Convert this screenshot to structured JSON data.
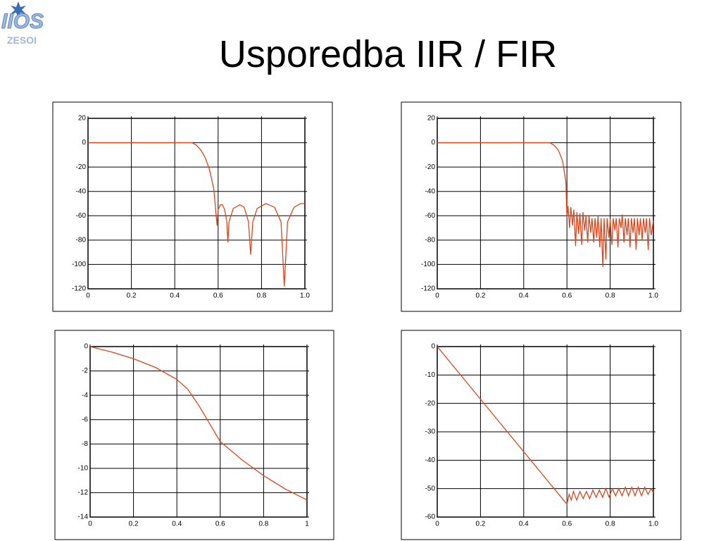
{
  "title": "Usporedba IIR / FIR",
  "logo": {
    "mark": "IIOS",
    "name": "ZESOI"
  },
  "chart_data": [
    {
      "type": "line",
      "color": "#e0441b",
      "grid": true,
      "x": [
        0,
        0.1,
        0.2,
        0.3,
        0.4,
        0.48,
        0.5,
        0.52,
        0.54,
        0.56,
        0.58,
        0.595,
        0.6,
        0.61,
        0.62,
        0.63,
        0.64,
        0.645,
        0.65,
        0.67,
        0.7,
        0.72,
        0.74,
        0.75,
        0.76,
        0.78,
        0.82,
        0.86,
        0.89,
        0.905,
        0.92,
        0.95,
        0.98,
        1.0
      ],
      "values": [
        0,
        0,
        0,
        0,
        0,
        0,
        -2,
        -6,
        -12,
        -22,
        -38,
        -68,
        -55,
        -51,
        -51,
        -55,
        -65,
        -82,
        -65,
        -54,
        -51,
        -53,
        -65,
        -92,
        -65,
        -54,
        -50,
        -53,
        -65,
        -118,
        -65,
        -53,
        -50,
        -50
      ],
      "xlim": [
        0,
        1
      ],
      "xticks": [
        0,
        0.2,
        0.4,
        0.6,
        0.8,
        {
          "value": 1,
          "label": "1.0"
        }
      ],
      "ylim": [
        -120,
        20
      ],
      "yticks": [
        -120,
        -100,
        -80,
        -60,
        -40,
        -20,
        0,
        20
      ]
    },
    {
      "type": "line",
      "color": "#e0441b",
      "grid": true,
      "x": [
        0,
        0.1,
        0.2,
        0.3,
        0.4,
        0.5,
        0.52,
        0.54,
        0.56,
        0.58,
        0.595,
        0.6,
        0.605,
        0.612,
        0.618,
        0.626,
        0.632,
        0.64,
        0.646,
        0.654,
        0.66,
        0.668,
        0.674,
        0.682,
        0.688,
        0.696,
        0.702,
        0.71,
        0.716,
        0.724,
        0.73,
        0.738,
        0.744,
        0.752,
        0.758,
        0.766,
        0.772,
        0.78,
        0.786,
        0.794,
        0.8,
        0.808,
        0.814,
        0.822,
        0.828,
        0.836,
        0.842,
        0.85,
        0.856,
        0.864,
        0.87,
        0.878,
        0.884,
        0.892,
        0.898,
        0.906,
        0.912,
        0.92,
        0.926,
        0.934,
        0.94,
        0.948,
        0.954,
        0.962,
        0.968,
        0.976,
        0.982,
        0.99,
        1.0
      ],
      "values": [
        0,
        0,
        0,
        0,
        0,
        0,
        0,
        -2,
        -6,
        -15,
        -32,
        -62,
        -52,
        -70,
        -53,
        -68,
        -55,
        -85,
        -57,
        -75,
        -58,
        -84,
        -57,
        -72,
        -60,
        -82,
        -60,
        -74,
        -62,
        -82,
        -62,
        -78,
        -60,
        -86,
        -62,
        -102,
        -62,
        -96,
        -62,
        -78,
        -63,
        -84,
        -62,
        -72,
        -62,
        -86,
        -62,
        -70,
        -59,
        -82,
        -62,
        -76,
        -62,
        -86,
        -62,
        -74,
        -62,
        -88,
        -62,
        -76,
        -62,
        -80,
        -62,
        -74,
        -62,
        -88,
        -62,
        -76,
        -64
      ],
      "xlim": [
        0,
        1
      ],
      "xticks": [
        0,
        0.2,
        0.4,
        0.6,
        0.8,
        {
          "value": 1,
          "label": "1.0"
        }
      ],
      "ylim": [
        -120,
        20
      ],
      "yticks": [
        -120,
        -100,
        -80,
        -60,
        -40,
        -20,
        0,
        20
      ]
    },
    {
      "type": "line",
      "color": "#e0441b",
      "grid": true,
      "x": [
        0,
        0.1,
        0.2,
        0.3,
        0.4,
        0.45,
        0.5,
        0.55,
        0.6,
        0.7,
        0.8,
        0.9,
        1.0
      ],
      "values": [
        0,
        -0.45,
        -1.0,
        -1.7,
        -2.7,
        -3.5,
        -4.8,
        -6.3,
        -7.8,
        -9.3,
        -10.6,
        -11.7,
        -12.6
      ],
      "xlim": [
        0,
        1
      ],
      "xticks": [
        0,
        0.2,
        0.4,
        0.6,
        0.8,
        1
      ],
      "ylim": [
        -14,
        0
      ],
      "yticks": [
        -14,
        -12,
        -10,
        -8,
        -6,
        -4,
        -2,
        0
      ]
    },
    {
      "type": "line",
      "color": "#e0441b",
      "grid": true,
      "x": [
        0,
        0.2,
        0.4,
        0.6,
        0.61,
        0.62,
        0.63,
        0.645,
        0.66,
        0.675,
        0.69,
        0.705,
        0.72,
        0.735,
        0.75,
        0.765,
        0.78,
        0.795,
        0.81,
        0.825,
        0.84,
        0.855,
        0.87,
        0.885,
        0.9,
        0.915,
        0.93,
        0.945,
        0.96,
        0.975,
        0.99,
        1.0
      ],
      "values": [
        0,
        -18.5,
        -37,
        -55.5,
        -52,
        -54,
        -51,
        -54,
        -51,
        -53.5,
        -51,
        -53.5,
        -50.5,
        -53,
        -50.5,
        -53,
        -50,
        -53,
        -50,
        -52.5,
        -50,
        -52.5,
        -49.5,
        -52.5,
        -49.5,
        -52.5,
        -49.5,
        -52.5,
        -49.5,
        -52,
        -50,
        -51.5
      ],
      "xlim": [
        0,
        1
      ],
      "xticks": [
        0,
        0.2,
        0.4,
        0.6,
        0.8,
        {
          "value": 1,
          "label": "1.0"
        }
      ],
      "ylim": [
        -60,
        0
      ],
      "yticks": [
        -60,
        -50,
        -40,
        -30,
        -20,
        -10,
        0
      ]
    }
  ]
}
